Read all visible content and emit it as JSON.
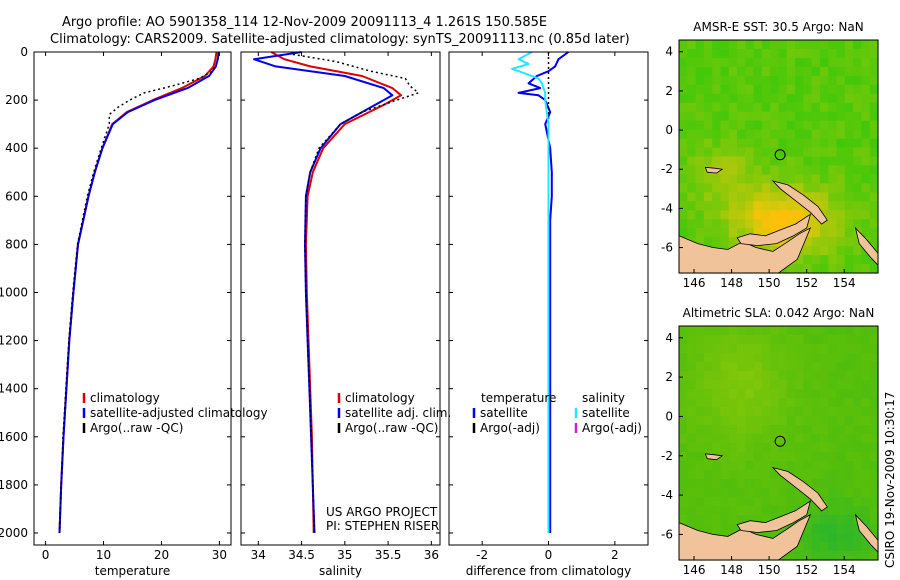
{
  "title_line1": "Argo profile: AO 5901358_114 12-Nov-2009 20091113_4 1.261S 150.585E",
  "title_line2": "Climatology: CARS2009. Satellite-adjusted climatology: synTS_20091113.nc (0.85d later)",
  "side_label": "CSIRO 19-Nov-2009 10:30:17",
  "colors": {
    "red": "#dd0000",
    "blue": "#0000ee",
    "black": "#000000",
    "cyan": "#22e8ff",
    "magenta": "#cc22cc",
    "land": "#f0c39b"
  },
  "chart_data": [
    {
      "type": "line",
      "id": "temperature",
      "xlabel": "temperature",
      "ylabel": "",
      "xlim": [
        -2,
        32
      ],
      "ylim": [
        2050,
        0
      ],
      "xticks": [
        0,
        10,
        20,
        30
      ],
      "yticks": [
        0,
        200,
        400,
        600,
        800,
        1000,
        1200,
        1400,
        1600,
        1800,
        2000
      ],
      "series": [
        {
          "name": "climatology",
          "color": "red",
          "style": "solid",
          "depth": [
            0,
            30,
            60,
            100,
            150,
            200,
            250,
            300,
            400,
            500,
            600,
            800,
            1000,
            1200,
            1400,
            1600,
            1800,
            2000
          ],
          "values": [
            29.5,
            29.3,
            29.0,
            27.5,
            23.5,
            18.5,
            14.0,
            11.5,
            9.8,
            8.5,
            7.4,
            5.6,
            4.8,
            4.1,
            3.6,
            3.1,
            2.7,
            2.4
          ]
        },
        {
          "name": "satellite-adjusted climatology",
          "color": "blue",
          "style": "solid",
          "depth": [
            0,
            30,
            60,
            100,
            150,
            200,
            250,
            300,
            400,
            500,
            600,
            800,
            1000,
            1200,
            1400,
            1600,
            1800,
            2000
          ],
          "values": [
            29.9,
            29.7,
            29.4,
            28.2,
            24.5,
            18.8,
            14.2,
            11.6,
            9.8,
            8.5,
            7.4,
            5.6,
            4.8,
            4.1,
            3.6,
            3.1,
            2.7,
            2.4
          ]
        },
        {
          "name": "Argo(..raw -QC)",
          "color": "black",
          "style": "dotted",
          "depth": [
            5,
            40,
            80,
            110,
            140,
            170,
            200,
            230,
            260,
            300,
            400,
            500,
            600,
            800,
            1000,
            1200,
            1400,
            1600,
            1800,
            2000
          ],
          "values": [
            29.8,
            29.7,
            28.8,
            26.5,
            22.0,
            17.0,
            14.5,
            12.5,
            11.0,
            11.0,
            9.6,
            8.3,
            7.2,
            5.5,
            4.7,
            4.0,
            3.5,
            3.0,
            2.7,
            2.4
          ]
        }
      ],
      "legend": [
        "climatology",
        "satellite-adjusted climatology",
        "Argo(..raw -QC)"
      ]
    },
    {
      "type": "line",
      "id": "salinity",
      "xlabel": "salinity",
      "xlim": [
        33.8,
        36.1
      ],
      "ylim": [
        2050,
        0
      ],
      "xticks": [
        34,
        34.5,
        35,
        35.5,
        36
      ],
      "series": [
        {
          "name": "climatology",
          "color": "red",
          "style": "solid",
          "depth": [
            0,
            30,
            60,
            100,
            150,
            180,
            220,
            300,
            400,
            500,
            600,
            800,
            1000,
            1200,
            1400,
            1600,
            1800,
            2000
          ],
          "values": [
            34.15,
            34.3,
            34.6,
            35.2,
            35.55,
            35.65,
            35.45,
            35.0,
            34.75,
            34.63,
            34.57,
            34.55,
            34.56,
            34.58,
            34.6,
            34.62,
            34.63,
            34.64
          ]
        },
        {
          "name": "satellite adj. clim.",
          "color": "blue",
          "style": "solid",
          "depth": [
            0,
            30,
            60,
            100,
            150,
            180,
            220,
            300,
            400,
            500,
            600,
            800,
            1000,
            1200,
            1400,
            1600,
            1800,
            2000
          ],
          "values": [
            34.5,
            33.95,
            34.2,
            35.0,
            35.45,
            35.55,
            35.35,
            34.95,
            34.72,
            34.6,
            34.55,
            34.54,
            34.55,
            34.57,
            34.59,
            34.61,
            34.63,
            34.65
          ]
        },
        {
          "name": "Argo(..raw -QC)",
          "color": "black",
          "style": "dotted",
          "depth": [
            10,
            40,
            80,
            110,
            140,
            170,
            200,
            250,
            300,
            400,
            500,
            600,
            800,
            1000,
            1200,
            1400,
            1600,
            1800,
            2000
          ],
          "values": [
            34.4,
            34.9,
            35.3,
            35.7,
            35.75,
            35.85,
            35.6,
            35.2,
            34.95,
            34.7,
            34.6,
            34.55,
            34.54,
            34.55,
            34.57,
            34.59,
            34.61,
            34.63,
            34.65
          ]
        }
      ],
      "legend": [
        "climatology",
        "satellite adj. clim.",
        "Argo(..raw -QC)"
      ],
      "notes": [
        "US ARGO PROJECT",
        "PI: STEPHEN RISER"
      ]
    },
    {
      "type": "line",
      "id": "difference",
      "xlabel": "difference from climatology",
      "xlim": [
        -3,
        3
      ],
      "ylim": [
        2050,
        0
      ],
      "xticks": [
        -2,
        0,
        2
      ],
      "series": [
        {
          "name": "temperature satellite",
          "color": "blue",
          "style": "solid",
          "depth": [
            0,
            30,
            60,
            80,
            100,
            130,
            150,
            170,
            180,
            200,
            250,
            300,
            400,
            500,
            600,
            700,
            800,
            1000,
            1500,
            2000
          ],
          "values": [
            0.6,
            0.3,
            0.2,
            0.0,
            -0.35,
            -0.6,
            -0.25,
            -0.9,
            -0.3,
            -0.1,
            0.05,
            -0.1,
            0.05,
            0.1,
            0.1,
            0.05,
            0.05,
            0.05,
            0.05,
            0.05
          ]
        },
        {
          "name": "temperature Argo(-adj)",
          "color": "black",
          "style": "dotted",
          "depth": [
            0,
            500,
            1000,
            1500,
            2000
          ],
          "values": [
            0,
            0,
            0,
            0,
            0
          ]
        },
        {
          "name": "salinity satellite",
          "color": "cyan",
          "style": "solid",
          "depth": [
            0,
            30,
            50,
            70,
            90,
            110,
            130,
            150,
            170,
            200,
            250,
            300,
            500,
            1000,
            1500,
            2000
          ],
          "values": [
            -0.5,
            -0.9,
            -0.6,
            -1.1,
            -0.7,
            -0.3,
            -0.2,
            -0.15,
            -0.1,
            -0.1,
            -0.05,
            0.0,
            0.0,
            0.0,
            0.0,
            0.0
          ]
        }
      ],
      "legend_temperature": {
        "heading": "temperature",
        "items": [
          "satellite",
          "Argo(-adj)"
        ]
      },
      "legend_salinity": {
        "heading": "salinity",
        "items": [
          "satellite",
          "Argo(-adj)"
        ]
      }
    },
    {
      "type": "heatmap",
      "id": "sst",
      "title": "AMSR-E SST: 30.5 Argo: NaN",
      "xlim": [
        145.2,
        155.8
      ],
      "ylim": [
        -7.3,
        4.6
      ],
      "xticks": [
        146,
        148,
        150,
        152,
        154
      ],
      "yticks": [
        4,
        2,
        0,
        -2,
        -4,
        -6
      ],
      "argo_position": [
        150.585,
        -1.261
      ]
    },
    {
      "type": "heatmap",
      "id": "sla",
      "title": "Altimetric SLA: 0.042 Argo: NaN",
      "xlim": [
        145.2,
        155.8
      ],
      "ylim": [
        -7.3,
        4.6
      ],
      "xticks": [
        146,
        148,
        150,
        152,
        154
      ],
      "yticks": [
        4,
        2,
        0,
        -2,
        -4,
        -6
      ],
      "argo_position": [
        150.585,
        -1.261
      ]
    }
  ]
}
